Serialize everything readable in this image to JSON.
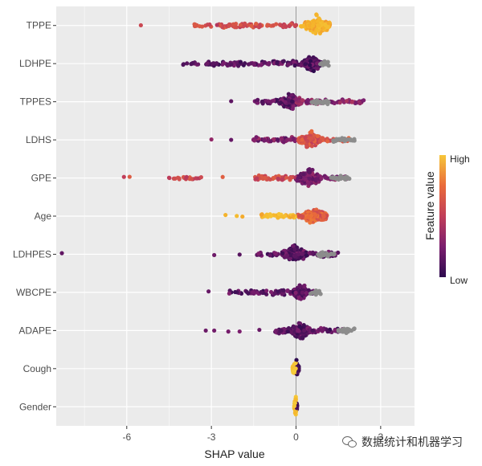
{
  "chart_data": {
    "type": "scatter",
    "subtype": "shap-beeswarm",
    "title": "",
    "xlabel": "SHAP value",
    "ylabel": "",
    "xlim": [
      -8.5,
      4.2
    ],
    "xticks": [
      -6,
      -3,
      0,
      3
    ],
    "xtick_labels": [
      "-6",
      "-3",
      "0",
      "3"
    ],
    "grid": true,
    "features": [
      {
        "name": "TPPE",
        "spread": [
          -5.5,
          1.2
        ],
        "core": [
          0.3,
          1.2
        ],
        "dense_min": -2.8,
        "tail": [
          -5.5,
          -3.6
        ],
        "color_low_side": 0.45,
        "color_high_side": 0.82,
        "gray": []
      },
      {
        "name": "LDHPE",
        "spread": [
          -4.0,
          1.0
        ],
        "core": [
          0.2,
          0.9
        ],
        "dense_min": -3.2,
        "tail": [
          -4.0
        ],
        "color_low_side": 0.12,
        "color_high_side": 0.1,
        "gray": [
          1.0
        ]
      },
      {
        "name": "TPPES",
        "spread": [
          -2.3,
          2.5
        ],
        "core": [
          -0.6,
          0.2
        ],
        "dense_min": -1.5,
        "tail": [
          -2.3
        ],
        "color_low_side": 0.12,
        "color_high_side": 0.25,
        "gray": [
          0.7,
          1.0
        ]
      },
      {
        "name": "LDHS",
        "spread": [
          -3.0,
          2.0
        ],
        "core": [
          0.1,
          0.9
        ],
        "dense_min": -1.6,
        "tail": [
          -3.0,
          -2.3
        ],
        "color_low_side": 0.2,
        "color_high_side": 0.5,
        "gray": [
          1.5,
          1.9
        ]
      },
      {
        "name": "GPE",
        "spread": [
          -6.1,
          1.8
        ],
        "core": [
          0.0,
          0.9
        ],
        "dense_min": -1.5,
        "tail": [
          -6.1,
          -5.9,
          -4.5,
          -3.9,
          -2.6
        ],
        "color_low_side": 0.45,
        "color_high_side": 0.2,
        "gray": [
          1.4,
          1.7
        ]
      },
      {
        "name": "Age",
        "spread": [
          -2.5,
          1.1
        ],
        "core": [
          0.2,
          1.1
        ],
        "dense_min": -1.3,
        "tail": [
          -2.5,
          -2.1,
          -1.9
        ],
        "color_low_side": 0.85,
        "color_high_side": 0.55,
        "gray": []
      },
      {
        "name": "LDHPES",
        "spread": [
          -8.3,
          1.5
        ],
        "core": [
          -0.5,
          0.4
        ],
        "dense_min": -1.4,
        "tail": [
          -8.3,
          -2.9,
          -2.0
        ],
        "color_low_side": 0.12,
        "color_high_side": 0.12,
        "gray": [
          0.9,
          1.2
        ]
      },
      {
        "name": "WBCPE",
        "spread": [
          -3.1,
          0.7
        ],
        "core": [
          -0.1,
          0.4
        ],
        "dense_min": -2.4,
        "tail": [
          -3.1
        ],
        "color_low_side": 0.12,
        "color_high_side": 0.12,
        "gray": [
          0.7
        ]
      },
      {
        "name": "ADAPE",
        "spread": [
          -3.2,
          1.9
        ],
        "core": [
          -0.2,
          0.5
        ],
        "dense_min": -0.8,
        "tail": [
          -3.2,
          -2.9,
          -2.4,
          -2.0,
          -1.3
        ],
        "color_low_side": 0.12,
        "color_high_side": 0.12,
        "gray": [
          1.7,
          1.9
        ]
      },
      {
        "name": "Cough",
        "spread": [
          -0.15,
          0.12
        ],
        "core": [
          -0.12,
          0.1
        ],
        "dense_min": -0.15,
        "tail": [],
        "color_low_side": 0.92,
        "color_high_side": 0.05,
        "gray": []
      },
      {
        "name": "Gender",
        "spread": [
          -0.08,
          0.05
        ],
        "core": [
          -0.06,
          0.04
        ],
        "dense_min": -0.08,
        "tail": [],
        "color_low_side": 0.92,
        "color_high_side": 0.1,
        "gray": []
      }
    ],
    "legend": {
      "title": "Feature value",
      "high_label": "High",
      "low_label": "Low",
      "placement": "right",
      "colors": [
        "#2d0a4e",
        "#7b1e6e",
        "#c13e59",
        "#ea6b3a",
        "#f5b12a",
        "#f6cd3a"
      ]
    },
    "colors": {
      "panel_bg": "#ebebeb",
      "grid": "#ffffff",
      "zero_line": "#999999",
      "axis_text": "#4d4d4d",
      "gray_point": "#8c8c8c"
    }
  },
  "watermark": {
    "text": "数据统计和机器学习",
    "icon": "wechat-icon"
  }
}
